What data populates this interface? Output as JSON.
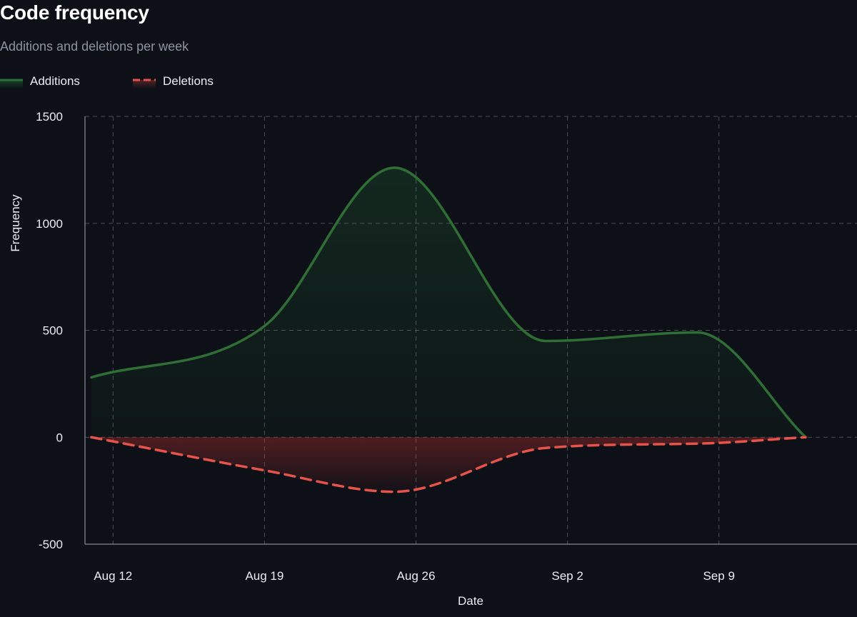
{
  "header": {
    "title": "Code frequency",
    "subtitle": "Additions and deletions per week"
  },
  "legend": {
    "placement": "top-left",
    "items": [
      {
        "label": "Additions",
        "color": "#2ea043",
        "style": "solid"
      },
      {
        "label": "Deletions",
        "color": "#f85149",
        "style": "dashed"
      }
    ]
  },
  "colors": {
    "background": "#0d1117",
    "grid": "#484f58",
    "axis": "#6e7681",
    "text": "#e6edf3",
    "subtitle": "#8b949e"
  },
  "chart_data": {
    "type": "area",
    "title": "Code frequency",
    "subtitle": "Additions and deletions per week",
    "xlabel": "Date",
    "ylabel": "Frequency",
    "ylim": [
      -500,
      1500
    ],
    "yticks": [
      -500,
      0,
      500,
      1000,
      1500
    ],
    "xticks": [
      "Aug 12",
      "Aug 19",
      "Aug 26",
      "Sep 2",
      "Sep 9"
    ],
    "xlim": [
      "Aug 11",
      "Sep 13"
    ],
    "grid": true,
    "x": [
      "Aug 11",
      "Aug 19",
      "Aug 25",
      "Sep 1",
      "Sep 8",
      "Sep 13"
    ],
    "series": [
      {
        "name": "Additions",
        "values": [
          280,
          520,
          1260,
          450,
          490,
          0
        ]
      },
      {
        "name": "Deletions",
        "values": [
          0,
          -155,
          -255,
          -50,
          -30,
          0
        ]
      }
    ]
  }
}
